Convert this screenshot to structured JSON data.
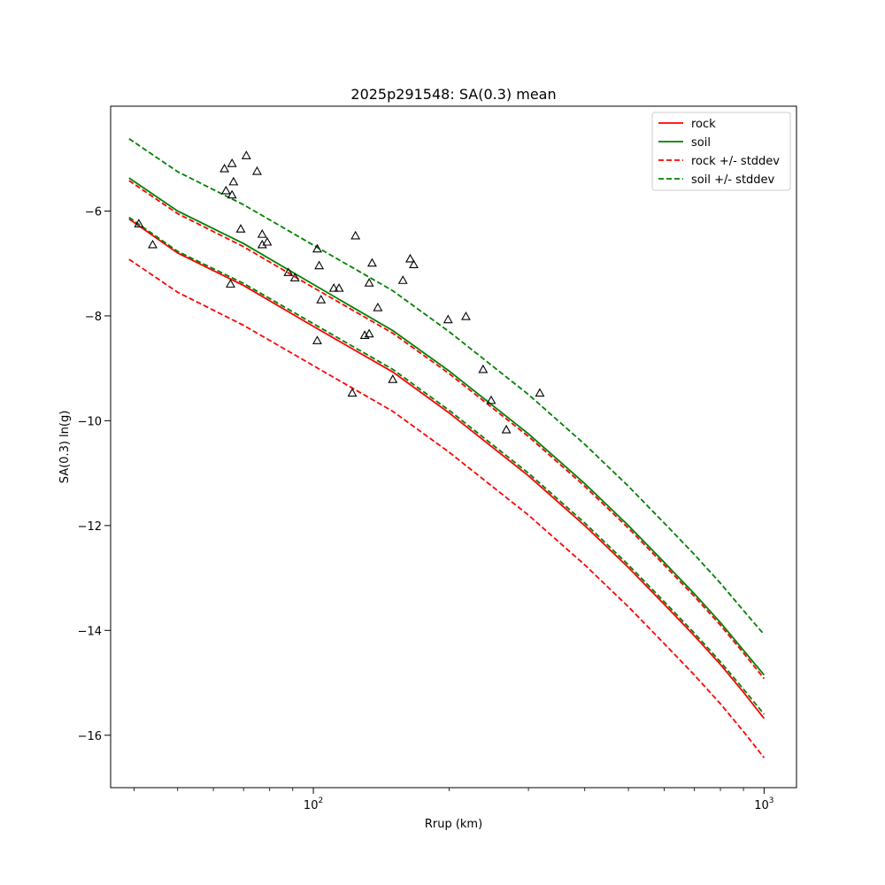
{
  "chart_data": {
    "type": "line",
    "title": "2025p291548: SA(0.3) mean",
    "xlabel": "Rrup (km)",
    "ylabel": "SA(0.3) ln(g)",
    "xscale": "log",
    "xlim": [
      35.5,
      1180
    ],
    "ylim": [
      -17.0,
      -4.0
    ],
    "x_ticks": [
      {
        "value": 100,
        "base": "10",
        "exp": "2"
      },
      {
        "value": 1000,
        "base": "10",
        "exp": "3"
      }
    ],
    "x_minor_ticks": [
      40,
      50,
      60,
      70,
      80,
      90,
      200,
      300,
      400,
      500,
      600,
      700,
      800,
      900
    ],
    "y_ticks": [
      {
        "value": -16,
        "label": "−16"
      },
      {
        "value": -14,
        "label": "−14"
      },
      {
        "value": -12,
        "label": "−12"
      },
      {
        "value": -10,
        "label": "−10"
      },
      {
        "value": -8,
        "label": "−8"
      },
      {
        "value": -6,
        "label": "−6"
      }
    ],
    "grid": false,
    "legend_position": "top-right",
    "series": [
      {
        "name": "rock",
        "color": "#ff0000",
        "dash": "solid",
        "x": [
          39,
          50,
          70,
          100,
          150,
          200,
          300,
          400,
          500,
          600,
          700,
          800,
          900,
          1000
        ],
        "y": [
          -6.15,
          -6.8,
          -7.42,
          -8.2,
          -9.07,
          -9.85,
          -11.05,
          -12.0,
          -12.8,
          -13.5,
          -14.1,
          -14.65,
          -15.18,
          -15.68
        ]
      },
      {
        "name": "soil",
        "color": "#008000",
        "dash": "solid",
        "x": [
          39,
          50,
          70,
          100,
          150,
          200,
          300,
          400,
          500,
          600,
          700,
          800,
          900,
          1000
        ],
        "y": [
          -5.37,
          -6.0,
          -6.62,
          -7.4,
          -8.28,
          -9.05,
          -10.25,
          -11.2,
          -12.0,
          -12.7,
          -13.3,
          -13.85,
          -14.38,
          -14.85
        ]
      },
      {
        "name": "rock +/- stddev",
        "color": "#ff0000",
        "dash": "dashed",
        "lines": [
          {
            "x": [
              39,
              50,
              70,
              100,
              150,
              200,
              300,
              400,
              500,
              600,
              700,
              800,
              900,
              1000
            ],
            "y": [
              -5.42,
              -6.05,
              -6.68,
              -7.46,
              -8.33,
              -9.1,
              -10.3,
              -11.25,
              -12.05,
              -12.75,
              -13.35,
              -13.9,
              -14.43,
              -14.92
            ]
          },
          {
            "x": [
              39,
              50,
              70,
              100,
              150,
              200,
              300,
              400,
              500,
              600,
              700,
              800,
              900,
              1000
            ],
            "y": [
              -6.92,
              -7.55,
              -8.18,
              -8.95,
              -9.82,
              -10.6,
              -11.8,
              -12.75,
              -13.55,
              -14.25,
              -14.85,
              -15.4,
              -15.93,
              -16.43
            ]
          }
        ]
      },
      {
        "name": "soil +/- stddev",
        "color": "#008000",
        "dash": "dashed",
        "lines": [
          {
            "x": [
              39,
              50,
              70,
              100,
              150,
              200,
              300,
              400,
              500,
              600,
              700,
              800,
              900,
              1000
            ],
            "y": [
              -4.62,
              -5.25,
              -5.88,
              -6.65,
              -7.52,
              -8.3,
              -9.5,
              -10.45,
              -11.25,
              -11.95,
              -12.55,
              -13.1,
              -13.62,
              -14.08
            ]
          },
          {
            "x": [
              39,
              50,
              70,
              100,
              150,
              200,
              300,
              400,
              500,
              600,
              700,
              800,
              900,
              1000
            ],
            "y": [
              -6.12,
              -6.77,
              -7.38,
              -8.15,
              -9.02,
              -9.8,
              -11.0,
              -11.95,
              -12.75,
              -13.45,
              -14.05,
              -14.6,
              -15.12,
              -15.6
            ]
          }
        ]
      }
    ],
    "observations": {
      "marker": "triangle",
      "color": "#000000",
      "points": [
        {
          "x": 41,
          "y": -6.25
        },
        {
          "x": 44,
          "y": -6.65
        },
        {
          "x": 63.5,
          "y": -5.2
        },
        {
          "x": 64,
          "y": -5.62
        },
        {
          "x": 66,
          "y": -5.1
        },
        {
          "x": 66.5,
          "y": -5.45
        },
        {
          "x": 66,
          "y": -5.7
        },
        {
          "x": 65.5,
          "y": -7.4
        },
        {
          "x": 69,
          "y": -6.35
        },
        {
          "x": 71,
          "y": -4.95
        },
        {
          "x": 75,
          "y": -5.25
        },
        {
          "x": 77,
          "y": -6.45
        },
        {
          "x": 77,
          "y": -6.65
        },
        {
          "x": 79,
          "y": -6.6
        },
        {
          "x": 88,
          "y": -7.18
        },
        {
          "x": 91,
          "y": -7.28
        },
        {
          "x": 102,
          "y": -6.73
        },
        {
          "x": 103,
          "y": -7.05
        },
        {
          "x": 104,
          "y": -7.7
        },
        {
          "x": 102,
          "y": -8.48
        },
        {
          "x": 111,
          "y": -7.48
        },
        {
          "x": 114,
          "y": -7.48
        },
        {
          "x": 122,
          "y": -9.48
        },
        {
          "x": 124,
          "y": -6.48
        },
        {
          "x": 130,
          "y": -8.38
        },
        {
          "x": 133,
          "y": -8.35
        },
        {
          "x": 133,
          "y": -7.38
        },
        {
          "x": 135,
          "y": -7.0
        },
        {
          "x": 139,
          "y": -7.85
        },
        {
          "x": 150,
          "y": -9.22
        },
        {
          "x": 158,
          "y": -7.33
        },
        {
          "x": 164,
          "y": -6.92
        },
        {
          "x": 167,
          "y": -7.03
        },
        {
          "x": 199,
          "y": -8.08
        },
        {
          "x": 218,
          "y": -8.02
        },
        {
          "x": 238,
          "y": -9.03
        },
        {
          "x": 248,
          "y": -9.62
        },
        {
          "x": 268,
          "y": -10.18
        },
        {
          "x": 318,
          "y": -9.48
        }
      ]
    }
  }
}
